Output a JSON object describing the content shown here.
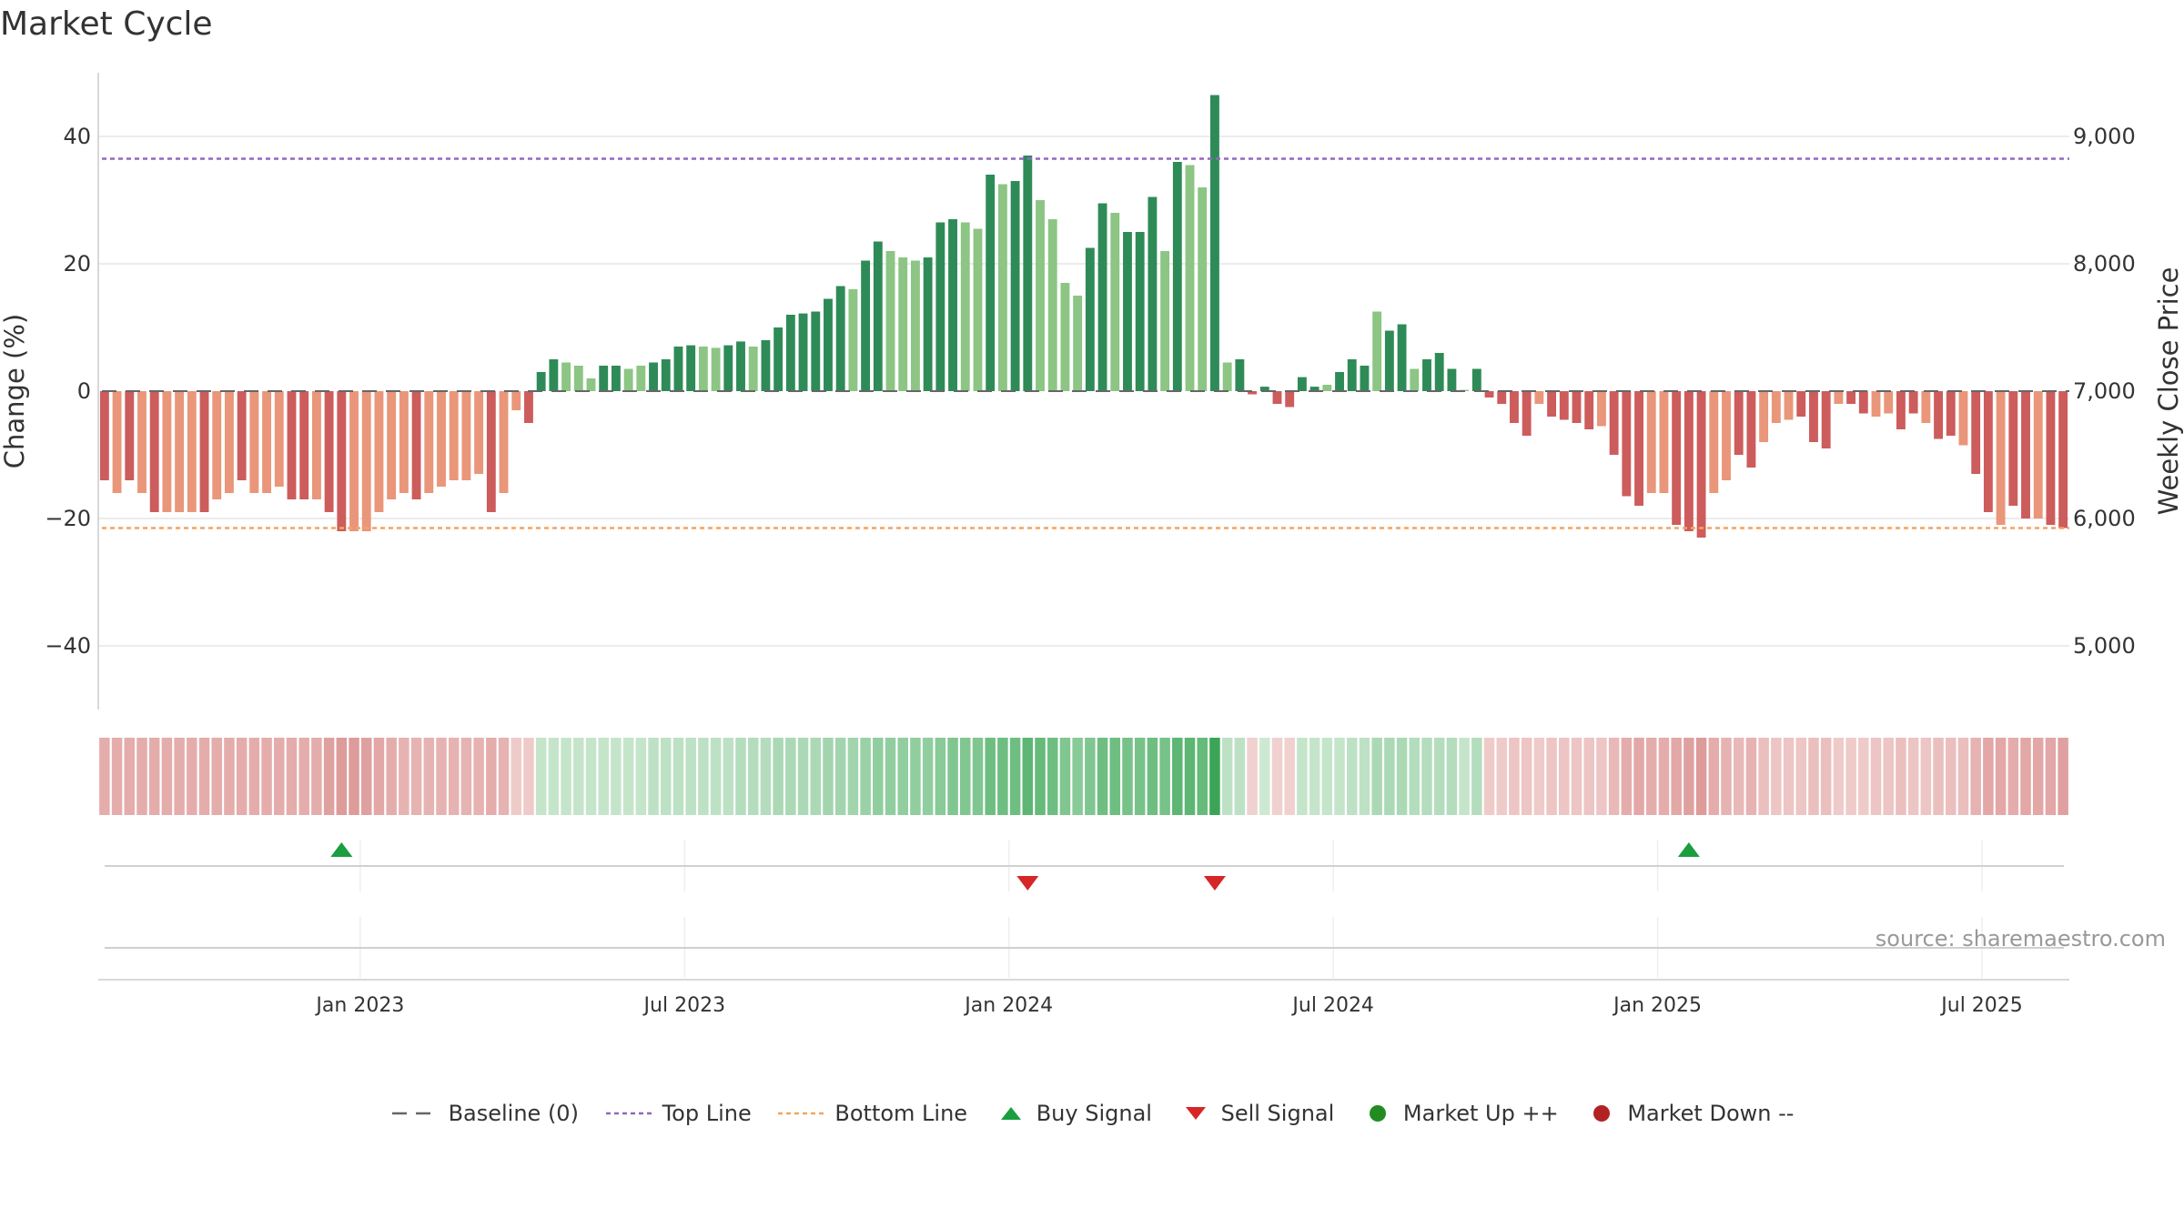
{
  "title": "Market Cycle",
  "source": "source: sharemaestro.com",
  "chart_data": {
    "type": "bar",
    "title": "Market Cycle",
    "ylabel": "Change (%)",
    "y2label": "Weekly Close Price",
    "ylim": [
      -50,
      50
    ],
    "y2lim": [
      4500,
      9500
    ],
    "yticks": [
      -40,
      -20,
      0,
      20,
      40
    ],
    "y2ticks": [
      5000,
      6000,
      7000,
      8000,
      9000
    ],
    "ytick_labels": [
      "−40",
      "−20",
      "0",
      "20",
      "40"
    ],
    "y2tick_labels": [
      "5,000",
      "6,000",
      "7,000",
      "8,000",
      "9,000"
    ],
    "xticks": [
      "Jan 2023",
      "Jul 2023",
      "Jan 2024",
      "Jul 2024",
      "Jan 2025",
      "Jul 2025"
    ],
    "top_line": 36.5,
    "bottom_line": -21.5,
    "colors": {
      "up_strong": "#2e8b57",
      "up_weak": "#8cc584",
      "down_strong": "#cd5c5c",
      "down_weak": "#e9967a",
      "top_line": "#9467bd",
      "bottom_line": "#f4a460",
      "buy": "#1a9e3f",
      "sell": "#d62728",
      "market_up": "#228b22",
      "market_down": "#b22222"
    },
    "values": [
      -14,
      -16,
      -14,
      -16,
      -19,
      -19,
      -19,
      -19,
      -19,
      -17,
      -16,
      -14,
      -16,
      -16,
      -15,
      -17,
      -17,
      -17,
      -19,
      -22,
      -22,
      -22,
      -19,
      -17,
      -16,
      -17,
      -16,
      -15,
      -14,
      -14,
      -13,
      -19,
      -16,
      -3,
      -5,
      3,
      5,
      4.5,
      4,
      2,
      4,
      4,
      3.5,
      4,
      4.5,
      5,
      7,
      7.2,
      7,
      6.8,
      7.2,
      7.8,
      7,
      8,
      10,
      12,
      12.2,
      12.5,
      14.5,
      16.5,
      16,
      20.5,
      23.5,
      22,
      21,
      20.5,
      21,
      26.5,
      27,
      26.5,
      25.5,
      34,
      32.5,
      33,
      37,
      30,
      27,
      17,
      15,
      22.5,
      29.5,
      28,
      25,
      25,
      30.5,
      22,
      36,
      35.5,
      32,
      46.5,
      4.5,
      5,
      -0.5,
      0.7,
      -2,
      -2.5,
      2.2,
      0.7,
      1,
      3,
      5,
      4,
      12.5,
      9.5,
      10.5,
      3.5,
      5,
      6,
      3.5,
      0.2,
      3.5,
      -1,
      -2,
      -5,
      -7,
      -2,
      -4,
      -4.5,
      -5,
      -6,
      -5.5,
      -10,
      -16.5,
      -18,
      -16,
      -16,
      -21,
      -22,
      -23,
      -16,
      -14,
      -10,
      -12,
      -8,
      -5,
      -4.5,
      -4,
      -8,
      -9,
      -2,
      -2,
      -3.5,
      -4,
      -3.5,
      -6,
      -3.5,
      -5,
      -7.5,
      -7,
      -8.5,
      -13,
      -19,
      -21,
      -18,
      -20,
      -20,
      -21,
      -21.5
    ],
    "strength": [
      1,
      0,
      1,
      0,
      1,
      0,
      0,
      0,
      1,
      0,
      0,
      1,
      0,
      0,
      0,
      1,
      1,
      0,
      1,
      1,
      0,
      0,
      0,
      0,
      0,
      1,
      0,
      0,
      0,
      0,
      0,
      1,
      0,
      0,
      1,
      1,
      1,
      0,
      0,
      0,
      1,
      1,
      0,
      0,
      1,
      1,
      1,
      1,
      0,
      0,
      1,
      1,
      0,
      1,
      1,
      1,
      1,
      1,
      1,
      1,
      0,
      1,
      1,
      0,
      0,
      0,
      1,
      1,
      1,
      0,
      0,
      1,
      0,
      1,
      1,
      0,
      0,
      0,
      0,
      1,
      1,
      0,
      1,
      1,
      1,
      0,
      1,
      0,
      0,
      1,
      0,
      1,
      1,
      1,
      1,
      1,
      1,
      1,
      0,
      1,
      1,
      1,
      0,
      1,
      1,
      0,
      1,
      1,
      1,
      0,
      1,
      1,
      1,
      1,
      1,
      0,
      1,
      1,
      1,
      1,
      0,
      1,
      1,
      1,
      0,
      0,
      1,
      1,
      1,
      0,
      0,
      1,
      1,
      0,
      0,
      0,
      1,
      1,
      1,
      0,
      1,
      1,
      0,
      0,
      1,
      1,
      0,
      1,
      1,
      0,
      1,
      1,
      0,
      1,
      1,
      0,
      1,
      1
    ],
    "heat": [
      -0.45,
      -0.45,
      -0.45,
      -0.45,
      -0.45,
      -0.45,
      -0.45,
      -0.45,
      -0.45,
      -0.45,
      -0.45,
      -0.45,
      -0.45,
      -0.45,
      -0.45,
      -0.45,
      -0.45,
      -0.45,
      -0.55,
      -0.6,
      -0.6,
      -0.55,
      -0.5,
      -0.45,
      -0.4,
      -0.4,
      -0.4,
      -0.4,
      -0.4,
      -0.4,
      -0.4,
      -0.45,
      -0.4,
      -0.2,
      -0.2,
      0.2,
      0.2,
      0.2,
      0.2,
      0.2,
      0.2,
      0.2,
      0.2,
      0.2,
      0.25,
      0.25,
      0.25,
      0.25,
      0.25,
      0.25,
      0.25,
      0.3,
      0.3,
      0.3,
      0.35,
      0.35,
      0.35,
      0.35,
      0.4,
      0.4,
      0.4,
      0.45,
      0.5,
      0.5,
      0.5,
      0.5,
      0.5,
      0.55,
      0.6,
      0.6,
      0.6,
      0.7,
      0.7,
      0.7,
      0.8,
      0.75,
      0.7,
      0.6,
      0.55,
      0.6,
      0.7,
      0.7,
      0.65,
      0.65,
      0.7,
      0.65,
      0.8,
      0.8,
      0.75,
      1,
      0.25,
      0.25,
      -0.15,
      0.15,
      -0.15,
      -0.15,
      0.2,
      0.2,
      0.2,
      0.2,
      0.25,
      0.25,
      0.35,
      0.35,
      0.35,
      0.3,
      0.3,
      0.3,
      0.3,
      0.2,
      0.3,
      -0.2,
      -0.2,
      -0.25,
      -0.25,
      -0.2,
      -0.25,
      -0.25,
      -0.25,
      -0.25,
      -0.25,
      -0.35,
      -0.45,
      -0.5,
      -0.45,
      -0.45,
      -0.5,
      -0.55,
      -0.6,
      -0.45,
      -0.4,
      -0.35,
      -0.4,
      -0.3,
      -0.25,
      -0.25,
      -0.25,
      -0.3,
      -0.3,
      -0.2,
      -0.2,
      -0.2,
      -0.25,
      -0.25,
      -0.3,
      -0.25,
      -0.25,
      -0.3,
      -0.3,
      -0.3,
      -0.4,
      -0.5,
      -0.5,
      -0.45,
      -0.5,
      -0.5,
      -0.5,
      -0.55
    ],
    "buy_signals": [
      19,
      127
    ],
    "sell_signals": [
      74,
      89
    ],
    "legend": [
      "Baseline (0)",
      "Top Line",
      "Bottom Line",
      "Buy Signal",
      "Sell Signal",
      "Market Up ++",
      "Market Down --"
    ]
  }
}
